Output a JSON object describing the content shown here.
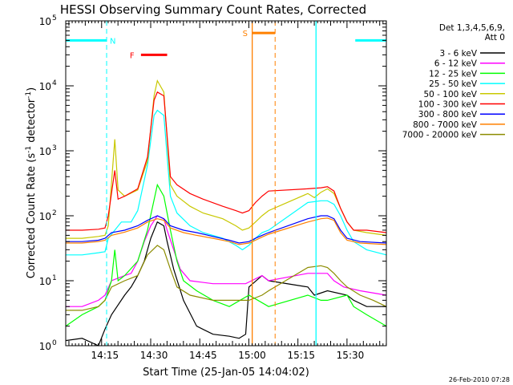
{
  "chart_data": {
    "type": "line",
    "title": "HESSI Observing Summary Count Rates, Corrected",
    "xlabel": "Start Time (25-Jan-05 14:04:02)",
    "ylabel_main": "Corrected Count Rate (s",
    "ylabel_sup1": "-1",
    "ylabel_mid": " detector",
    "ylabel_sup2": "-1",
    "ylabel_end": ")",
    "x_units": "minutes since 14:04:02",
    "xlim": [
      0,
      98
    ],
    "ylim": [
      1,
      100000
    ],
    "yscale": "log",
    "xtick_labels": [
      {
        "x": 11.97,
        "label": "14:15"
      },
      {
        "x": 26.97,
        "label": "14:30"
      },
      {
        "x": 41.97,
        "label": "14:45"
      },
      {
        "x": 56.97,
        "label": "15:00"
      },
      {
        "x": 71.97,
        "label": "15:15"
      },
      {
        "x": 86.97,
        "label": "15:30"
      }
    ],
    "ytick_labels": [
      {
        "value": 1,
        "base": "10",
        "exp": "0"
      },
      {
        "value": 10,
        "base": "10",
        "exp": "1"
      },
      {
        "value": 100,
        "base": "10",
        "exp": "2"
      },
      {
        "value": 1000,
        "base": "10",
        "exp": "3"
      },
      {
        "value": 10000,
        "base": "10",
        "exp": "4"
      },
      {
        "value": 100000,
        "base": "10",
        "exp": "5"
      }
    ],
    "legend_header": [
      "Det 1,3,4,5,6,9,",
      "Att 0"
    ],
    "legend_position": "right",
    "series": [
      {
        "name": "3 - 6 keV",
        "color": "#000000",
        "points": [
          [
            0,
            1.2
          ],
          [
            5,
            1.3
          ],
          [
            10,
            1.0
          ],
          [
            12,
            1.8
          ],
          [
            14,
            3
          ],
          [
            18,
            6
          ],
          [
            20,
            8
          ],
          [
            22,
            12
          ],
          [
            24,
            20
          ],
          [
            26,
            45
          ],
          [
            28,
            80
          ],
          [
            30,
            70
          ],
          [
            31,
            40
          ],
          [
            33,
            15
          ],
          [
            36,
            5
          ],
          [
            40,
            2
          ],
          [
            45,
            1.5
          ],
          [
            50,
            1.4
          ],
          [
            53,
            1.3
          ],
          [
            55,
            1.5
          ],
          [
            56,
            8
          ],
          [
            60,
            12
          ],
          [
            62,
            10
          ],
          [
            74,
            8
          ],
          [
            76,
            6
          ],
          [
            80,
            7
          ],
          [
            86,
            6
          ],
          [
            88,
            5
          ],
          [
            92,
            4
          ],
          [
            98,
            4
          ]
        ]
      },
      {
        "name": "6 - 12 keV",
        "color": "#ff00ff",
        "points": [
          [
            0,
            4
          ],
          [
            5,
            4
          ],
          [
            10,
            5
          ],
          [
            12,
            6
          ],
          [
            14,
            10
          ],
          [
            18,
            12
          ],
          [
            20,
            13
          ],
          [
            22,
            20
          ],
          [
            24,
            40
          ],
          [
            26,
            70
          ],
          [
            28,
            100
          ],
          [
            30,
            90
          ],
          [
            31,
            60
          ],
          [
            33,
            30
          ],
          [
            35,
            15
          ],
          [
            38,
            10
          ],
          [
            45,
            9
          ],
          [
            55,
            9
          ],
          [
            60,
            12
          ],
          [
            62,
            10
          ],
          [
            74,
            13
          ],
          [
            80,
            13
          ],
          [
            82,
            10
          ],
          [
            85,
            8
          ],
          [
            90,
            7
          ],
          [
            98,
            6
          ]
        ]
      },
      {
        "name": "12 - 25 keV",
        "color": "#00ff00",
        "points": [
          [
            0,
            2
          ],
          [
            5,
            3
          ],
          [
            10,
            4
          ],
          [
            12,
            5
          ],
          [
            14,
            10
          ],
          [
            15,
            30
          ],
          [
            16,
            10
          ],
          [
            18,
            12
          ],
          [
            22,
            20
          ],
          [
            25,
            60
          ],
          [
            28,
            300
          ],
          [
            30,
            200
          ],
          [
            32,
            60
          ],
          [
            34,
            20
          ],
          [
            36,
            10
          ],
          [
            40,
            7
          ],
          [
            45,
            5
          ],
          [
            50,
            4
          ],
          [
            56,
            6
          ],
          [
            62,
            4
          ],
          [
            74,
            6
          ],
          [
            78,
            5
          ],
          [
            80,
            5
          ],
          [
            86,
            6
          ],
          [
            88,
            4
          ],
          [
            92,
            3
          ],
          [
            98,
            2
          ]
        ]
      },
      {
        "name": "25 - 50 keV",
        "color": "#00ffff",
        "points": [
          [
            0,
            25
          ],
          [
            5,
            25
          ],
          [
            10,
            27
          ],
          [
            12,
            28
          ],
          [
            13,
            45
          ],
          [
            15,
            60
          ],
          [
            17,
            80
          ],
          [
            20,
            80
          ],
          [
            22,
            120
          ],
          [
            25,
            600
          ],
          [
            27,
            3500
          ],
          [
            28,
            4200
          ],
          [
            30,
            3500
          ],
          [
            32,
            200
          ],
          [
            34,
            110
          ],
          [
            38,
            70
          ],
          [
            42,
            55
          ],
          [
            48,
            45
          ],
          [
            52,
            35
          ],
          [
            54,
            30
          ],
          [
            56,
            35
          ],
          [
            58,
            45
          ],
          [
            60,
            55
          ],
          [
            62,
            60
          ],
          [
            74,
            160
          ],
          [
            78,
            170
          ],
          [
            80,
            170
          ],
          [
            82,
            150
          ],
          [
            84,
            100
          ],
          [
            86,
            60
          ],
          [
            88,
            40
          ],
          [
            92,
            30
          ],
          [
            98,
            25
          ]
        ]
      },
      {
        "name": "50 - 100 keV",
        "color": "#c8c800",
        "points": [
          [
            0,
            45
          ],
          [
            5,
            45
          ],
          [
            10,
            48
          ],
          [
            12,
            50
          ],
          [
            13,
            70
          ],
          [
            15,
            1500
          ],
          [
            16,
            250
          ],
          [
            18,
            200
          ],
          [
            22,
            250
          ],
          [
            25,
            700
          ],
          [
            27,
            7000
          ],
          [
            28,
            12000
          ],
          [
            30,
            8000
          ],
          [
            32,
            300
          ],
          [
            34,
            200
          ],
          [
            38,
            140
          ],
          [
            42,
            110
          ],
          [
            48,
            90
          ],
          [
            52,
            70
          ],
          [
            54,
            60
          ],
          [
            56,
            65
          ],
          [
            58,
            80
          ],
          [
            60,
            100
          ],
          [
            62,
            120
          ],
          [
            74,
            220
          ],
          [
            76,
            190
          ],
          [
            78,
            230
          ],
          [
            80,
            260
          ],
          [
            82,
            220
          ],
          [
            84,
            130
          ],
          [
            86,
            80
          ],
          [
            88,
            60
          ],
          [
            92,
            55
          ],
          [
            98,
            50
          ]
        ]
      },
      {
        "name": "100 - 300 keV",
        "color": "#ff0000",
        "points": [
          [
            0,
            60
          ],
          [
            5,
            60
          ],
          [
            10,
            62
          ],
          [
            12,
            65
          ],
          [
            13,
            100
          ],
          [
            15,
            500
          ],
          [
            16,
            180
          ],
          [
            18,
            200
          ],
          [
            22,
            260
          ],
          [
            25,
            800
          ],
          [
            27,
            6000
          ],
          [
            28,
            8000
          ],
          [
            30,
            7000
          ],
          [
            32,
            400
          ],
          [
            34,
            300
          ],
          [
            38,
            220
          ],
          [
            42,
            180
          ],
          [
            48,
            140
          ],
          [
            52,
            120
          ],
          [
            54,
            110
          ],
          [
            56,
            120
          ],
          [
            58,
            160
          ],
          [
            60,
            200
          ],
          [
            62,
            240
          ],
          [
            74,
            260
          ],
          [
            78,
            270
          ],
          [
            80,
            280
          ],
          [
            82,
            240
          ],
          [
            84,
            130
          ],
          [
            86,
            80
          ],
          [
            88,
            60
          ],
          [
            92,
            60
          ],
          [
            98,
            55
          ]
        ]
      },
      {
        "name": "300 - 800 keV",
        "color": "#0000ff",
        "points": [
          [
            0,
            40
          ],
          [
            5,
            40
          ],
          [
            10,
            42
          ],
          [
            12,
            45
          ],
          [
            14,
            55
          ],
          [
            18,
            60
          ],
          [
            22,
            70
          ],
          [
            25,
            85
          ],
          [
            28,
            100
          ],
          [
            30,
            90
          ],
          [
            32,
            70
          ],
          [
            36,
            60
          ],
          [
            40,
            55
          ],
          [
            45,
            48
          ],
          [
            50,
            42
          ],
          [
            53,
            38
          ],
          [
            56,
            40
          ],
          [
            58,
            45
          ],
          [
            60,
            50
          ],
          [
            62,
            55
          ],
          [
            74,
            90
          ],
          [
            78,
            100
          ],
          [
            80,
            100
          ],
          [
            82,
            90
          ],
          [
            84,
            60
          ],
          [
            86,
            45
          ],
          [
            90,
            40
          ],
          [
            98,
            38
          ]
        ]
      },
      {
        "name": "800 - 7000 keV",
        "color": "#ff8000",
        "points": [
          [
            0,
            38
          ],
          [
            5,
            38
          ],
          [
            10,
            40
          ],
          [
            12,
            42
          ],
          [
            14,
            50
          ],
          [
            18,
            56
          ],
          [
            22,
            65
          ],
          [
            25,
            80
          ],
          [
            28,
            90
          ],
          [
            30,
            85
          ],
          [
            32,
            65
          ],
          [
            36,
            55
          ],
          [
            40,
            50
          ],
          [
            45,
            45
          ],
          [
            50,
            40
          ],
          [
            53,
            36
          ],
          [
            56,
            38
          ],
          [
            58,
            42
          ],
          [
            60,
            47
          ],
          [
            62,
            52
          ],
          [
            74,
            80
          ],
          [
            78,
            90
          ],
          [
            80,
            92
          ],
          [
            82,
            85
          ],
          [
            84,
            55
          ],
          [
            86,
            42
          ],
          [
            90,
            38
          ],
          [
            98,
            36
          ]
        ]
      },
      {
        "name": "7000 - 20000 keV",
        "color": "#8c8c00",
        "points": [
          [
            0,
            3.5
          ],
          [
            5,
            3.5
          ],
          [
            10,
            4
          ],
          [
            12,
            5
          ],
          [
            14,
            8
          ],
          [
            18,
            10
          ],
          [
            22,
            12
          ],
          [
            25,
            25
          ],
          [
            28,
            35
          ],
          [
            30,
            30
          ],
          [
            32,
            15
          ],
          [
            34,
            8
          ],
          [
            38,
            6
          ],
          [
            45,
            5
          ],
          [
            50,
            5
          ],
          [
            56,
            5
          ],
          [
            60,
            6
          ],
          [
            62,
            7
          ],
          [
            74,
            16
          ],
          [
            78,
            17
          ],
          [
            80,
            16
          ],
          [
            82,
            13
          ],
          [
            84,
            10
          ],
          [
            86,
            8
          ],
          [
            90,
            6
          ],
          [
            94,
            5
          ],
          [
            98,
            4
          ]
        ]
      }
    ],
    "state_markers": [
      {
        "label": "N",
        "color": "#00ffff",
        "bar": [
          -1,
          12.5
        ],
        "bar_value": 50000,
        "line_dashed": 12.5,
        "line_solid": null
      },
      {
        "label": "N",
        "color": "#00ffff",
        "bar": [
          88.5,
          98
        ],
        "bar_value": 50000,
        "line_dashed": 98,
        "line_solid": 76.5
      },
      {
        "label": "S",
        "color": "#ff8000",
        "bar": [
          57,
          64
        ],
        "bar_value": 65000,
        "line_dashed": 64,
        "line_solid": 57
      },
      {
        "label": "F",
        "color": "#ff0000",
        "bar": [
          23,
          31
        ],
        "bar_value": 30000,
        "line_dashed": null,
        "line_solid": null
      }
    ],
    "grid": false
  },
  "footer": {
    "timestamp": "26-Feb-2010 07:28"
  }
}
